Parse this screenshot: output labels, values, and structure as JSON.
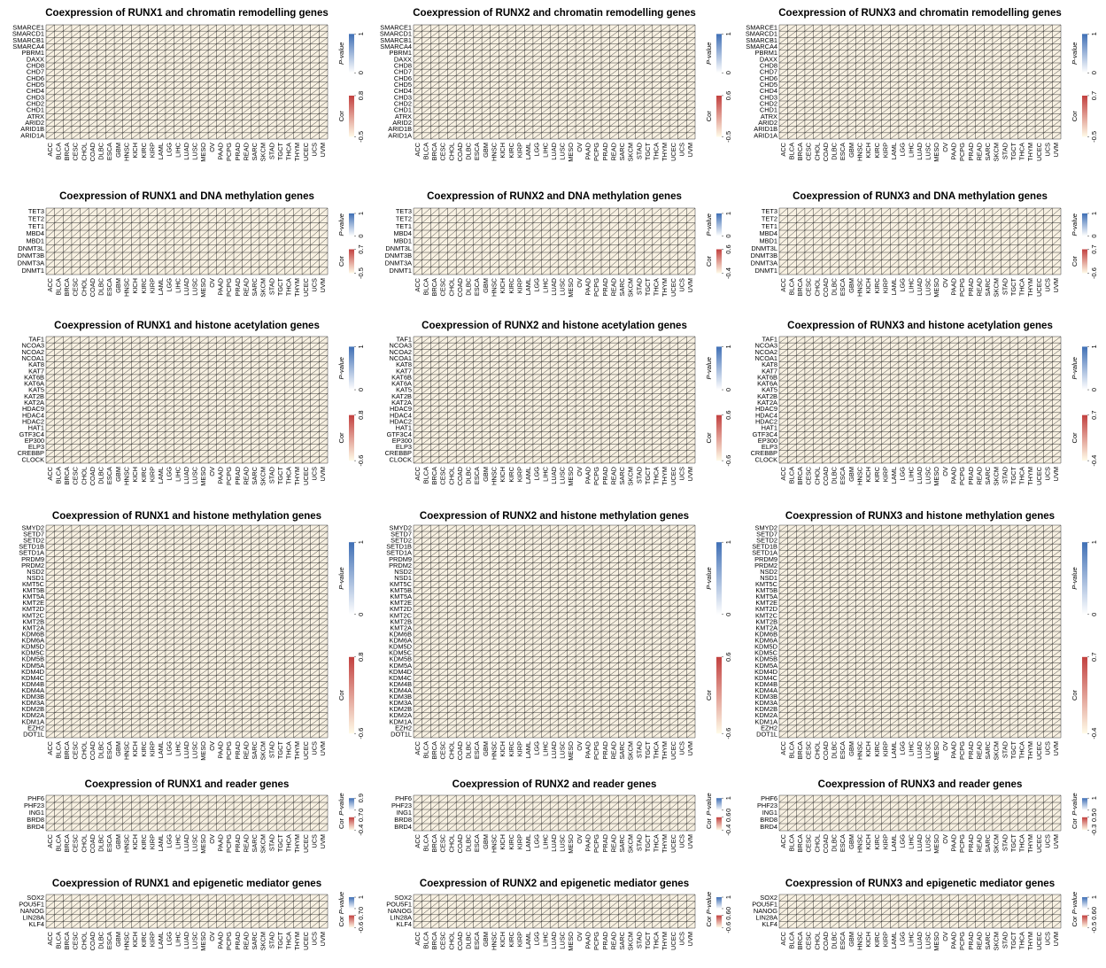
{
  "cancers": [
    "ACC",
    "BLCA",
    "BRCA",
    "CESC",
    "CHOL",
    "COAD",
    "DLBC",
    "ESCA",
    "GBM",
    "HNSC",
    "KICH",
    "KIRC",
    "KIRP",
    "LAML",
    "LGG",
    "LIHC",
    "LUAD",
    "LUSC",
    "MESO",
    "OV",
    "PAAD",
    "PCPG",
    "PRAD",
    "READ",
    "SARC",
    "SKCM",
    "STAD",
    "TGCT",
    "THCA",
    "THYM",
    "UCEC",
    "UCS",
    "UVM"
  ],
  "pvalue_label": "P-value",
  "cor_label": "Cor",
  "gene_sets": [
    {
      "genes": [
        "SMARCE1",
        "SMARCD1",
        "SMARCB1",
        "SMARCA4",
        "PBRM1",
        "DAXX",
        "CHD8",
        "CHD7",
        "CHD6",
        "CHD5",
        "CHD4",
        "CHD3",
        "CHD2",
        "CHD1",
        "ATRX",
        "ARID2",
        "ARID1B",
        "ARID1A"
      ],
      "panels": [
        {
          "title": "Coexpression of RUNX1 and chromatin remodelling genes",
          "pvalue_ticks": [
            0,
            1
          ],
          "cor_ticks": [
            -0.5,
            0.8
          ]
        },
        {
          "title": "Coexpression of RUNX2 and chromatin remodelling genes",
          "pvalue_ticks": [
            0,
            1
          ],
          "cor_ticks": [
            -0.5,
            0.6
          ]
        },
        {
          "title": "Coexpression of RUNX3 and chromatin remodelling genes",
          "pvalue_ticks": [
            0,
            1
          ],
          "cor_ticks": [
            -0.5,
            0.7
          ]
        }
      ]
    },
    {
      "genes": [
        "TET3",
        "TET2",
        "TET1",
        "MBD4",
        "MBD1",
        "DNMT3L",
        "DNMT3B",
        "DNMT3A",
        "DNMT1"
      ],
      "panels": [
        {
          "title": "Coexpression of RUNX1 and DNA methylation genes",
          "pvalue_ticks": [
            0,
            1
          ],
          "cor_ticks": [
            -0.5,
            0.7
          ]
        },
        {
          "title": "Coexpression of RUNX2 and DNA methylation genes",
          "pvalue_ticks": [
            0,
            1
          ],
          "cor_ticks": [
            -0.4,
            0.6
          ]
        },
        {
          "title": "Coexpression of RUNX3 and DNA methylation genes",
          "pvalue_ticks": [
            0,
            1
          ],
          "cor_ticks": [
            -0.6,
            0.7
          ]
        }
      ]
    },
    {
      "genes": [
        "TAF1",
        "NCOA3",
        "NCOA2",
        "NCOA1",
        "KAT8",
        "KAT7",
        "KAT6B",
        "KAT6A",
        "KAT5",
        "KAT2B",
        "KAT2A",
        "HDAC9",
        "HDAC4",
        "HDAC2",
        "HAT1",
        "GTF3C4",
        "EP300",
        "ELP3",
        "CREBBP",
        "CLOCK"
      ],
      "panels": [
        {
          "title": "Coexpression of RUNX1 and histone acetylation genes",
          "pvalue_ticks": [
            0,
            1
          ],
          "cor_ticks": [
            -0.6,
            0.8
          ]
        },
        {
          "title": "Coexpression of RUNX2 and histone acetylation genes",
          "pvalue_ticks": [
            0,
            1
          ],
          "cor_ticks": [
            -0.6,
            0.6
          ]
        },
        {
          "title": "Coexpression of RUNX3 and histone acetylation genes",
          "pvalue_ticks": [
            0,
            1
          ],
          "cor_ticks": [
            -0.4,
            0.7
          ]
        }
      ]
    },
    {
      "genes": [
        "SMYD2",
        "SETD7",
        "SETD2",
        "SETD1B",
        "SETD1A",
        "PRDM9",
        "PRDM2",
        "NSD2",
        "NSD1",
        "KMT5C",
        "KMT5B",
        "KMT5A",
        "KMT2E",
        "KMT2D",
        "KMT2C",
        "KMT2B",
        "KMT2A",
        "KDM6B",
        "KDM6A",
        "KDM5D",
        "KDM5C",
        "KDM5B",
        "KDM5A",
        "KDM4D",
        "KDM4C",
        "KDM4B",
        "KDM4A",
        "KDM3B",
        "KDM3A",
        "KDM2B",
        "KDM2A",
        "KDM1A",
        "EZH2",
        "DOT1L"
      ],
      "panels": [
        {
          "title": "Coexpression of RUNX1 and histone methylation genes",
          "pvalue_ticks": [
            0,
            1
          ],
          "cor_ticks": [
            -0.6,
            0.8
          ]
        },
        {
          "title": "Coexpression of RUNX2 and histone methylation genes",
          "pvalue_ticks": [
            0,
            1
          ],
          "cor_ticks": [
            -0.6,
            0.6
          ]
        },
        {
          "title": "Coexpression of RUNX3 and histone methylation genes",
          "pvalue_ticks": [
            0,
            1
          ],
          "cor_ticks": [
            -0.4,
            0.7
          ]
        }
      ]
    },
    {
      "genes": [
        "PHF6",
        "PHF23",
        "ING1",
        "BRD8",
        "BRD4"
      ],
      "panels": [
        {
          "title": "Coexpression of RUNX1 and reader genes",
          "pvalue_ticks": [
            0,
            0.9
          ],
          "cor_ticks": [
            -0.4,
            0.7
          ]
        },
        {
          "title": "Coexpression of RUNX2 and reader genes",
          "pvalue_ticks": [
            0,
            1
          ],
          "cor_ticks": [
            -0.4,
            0.6
          ]
        },
        {
          "title": "Coexpression of RUNX3 and reader genes",
          "pvalue_ticks": [
            0,
            1
          ],
          "cor_ticks": [
            -0.3,
            0.5
          ]
        }
      ]
    },
    {
      "genes": [
        "SOX2",
        "POU5F1",
        "NANOG",
        "LIN28A",
        "KLF4"
      ],
      "panels": [
        {
          "title": "Coexpression of RUNX1 and epigenetic mediator genes",
          "pvalue_ticks": [
            0,
            1
          ],
          "cor_ticks": [
            -0.6,
            0.7
          ]
        },
        {
          "title": "Coexpression of RUNX2 and epigenetic mediator genes",
          "pvalue_ticks": [
            0,
            1
          ],
          "cor_ticks": [
            -0.6,
            0.6
          ]
        },
        {
          "title": "Coexpression of RUNX3 and epigenetic mediator genes",
          "pvalue_ticks": [
            0,
            1
          ],
          "cor_ticks": [
            -0.5,
            0.6
          ]
        }
      ]
    }
  ]
}
